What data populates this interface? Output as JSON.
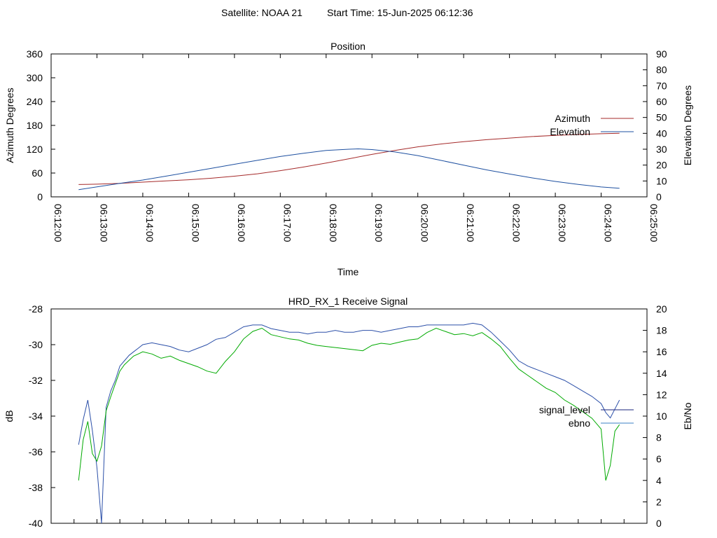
{
  "header": {
    "satellite_label": "Satellite: NOAA 21",
    "start_time_label": "Start Time: 15-Jun-2025 06:12:36"
  },
  "chart_data": [
    {
      "type": "line",
      "title": "Position",
      "xlabel": "Time",
      "ylabel": "Azimuth Degrees",
      "y2label": "Elevation Degrees",
      "x_ticks": [
        "06:12:00",
        "06:13:00",
        "06:14:00",
        "06:15:00",
        "06:16:00",
        "06:17:00",
        "06:18:00",
        "06:19:00",
        "06:20:00",
        "06:21:00",
        "06:22:00",
        "06:23:00",
        "06:24:00",
        "06:25:00"
      ],
      "x_minutes": [
        0,
        1,
        2,
        3,
        4,
        5,
        6,
        7,
        8,
        9,
        10,
        11,
        12,
        13
      ],
      "ylim": [
        0,
        360
      ],
      "y_ticks": [
        0,
        60,
        120,
        180,
        240,
        300,
        360
      ],
      "y2lim": [
        0,
        90
      ],
      "y2_ticks": [
        0,
        10,
        20,
        30,
        40,
        50,
        60,
        70,
        80,
        90
      ],
      "legend_position": "right",
      "series": [
        {
          "name": "Azimuth",
          "axis": "left",
          "color": "#a52a2a",
          "x": [
            0.6,
            1.0,
            1.5,
            2.0,
            2.5,
            3.0,
            3.5,
            4.0,
            4.5,
            5.0,
            5.5,
            6.0,
            6.5,
            7.0,
            7.5,
            8.0,
            8.5,
            9.0,
            9.5,
            10.0,
            10.5,
            11.0,
            11.5,
            12.0,
            12.4
          ],
          "values": [
            31,
            32,
            34,
            37,
            40,
            43,
            47,
            52,
            58,
            66,
            75,
            85,
            96,
            107,
            117,
            126,
            133,
            139,
            144,
            148,
            152,
            155,
            157,
            159,
            160
          ]
        },
        {
          "name": "Elevation",
          "axis": "right",
          "color": "#1e50a0",
          "x": [
            0.6,
            1.0,
            1.5,
            2.0,
            2.5,
            3.0,
            3.5,
            4.0,
            4.5,
            5.0,
            5.5,
            6.0,
            6.5,
            6.7,
            7.0,
            7.5,
            8.0,
            8.5,
            9.0,
            9.5,
            10.0,
            10.5,
            11.0,
            11.5,
            12.0,
            12.4
          ],
          "values": [
            4.5,
            6.3,
            8.5,
            10.6,
            13.0,
            15.5,
            18.0,
            20.5,
            23.0,
            25.4,
            27.4,
            29.2,
            30.0,
            30.2,
            29.8,
            28.3,
            26.0,
            23.0,
            20.0,
            17.0,
            14.4,
            11.9,
            9.7,
            7.8,
            6.2,
            5.4
          ]
        }
      ]
    },
    {
      "type": "line",
      "title": "HRD_RX_1 Receive Signal",
      "ylabel": "dB",
      "y2label": "Eb/No",
      "ylim": [
        -40,
        -28
      ],
      "y_ticks": [
        -40,
        -38,
        -36,
        -34,
        -32,
        -30,
        -28
      ],
      "y2lim": [
        0,
        20
      ],
      "y2_ticks": [
        0,
        2,
        4,
        6,
        8,
        10,
        12,
        14,
        16,
        18,
        20
      ],
      "xlim_minutes": [
        0,
        13
      ],
      "legend_position": "right",
      "series": [
        {
          "name": "signal_level",
          "axis": "left",
          "color": "#2b4fa8",
          "x": [
            0.6,
            0.7,
            0.8,
            0.9,
            1.0,
            1.1,
            1.2,
            1.3,
            1.4,
            1.5,
            1.6,
            1.7,
            1.8,
            1.9,
            2.0,
            2.2,
            2.4,
            2.6,
            2.8,
            3.0,
            3.2,
            3.4,
            3.6,
            3.8,
            4.0,
            4.2,
            4.4,
            4.6,
            4.8,
            5.0,
            5.2,
            5.4,
            5.6,
            5.8,
            6.0,
            6.2,
            6.4,
            6.6,
            6.8,
            7.0,
            7.2,
            7.4,
            7.6,
            7.8,
            8.0,
            8.2,
            8.4,
            8.6,
            8.8,
            9.0,
            9.2,
            9.4,
            9.6,
            9.8,
            10.0,
            10.2,
            10.4,
            10.6,
            10.8,
            11.0,
            11.2,
            11.4,
            11.6,
            11.8,
            12.0,
            12.1,
            12.2,
            12.3,
            12.4
          ],
          "values": [
            -35.6,
            -34.2,
            -33.1,
            -34.8,
            -36.9,
            -40.0,
            -33.5,
            -32.6,
            -32.0,
            -31.2,
            -30.9,
            -30.6,
            -30.4,
            -30.2,
            -30.0,
            -29.9,
            -30.0,
            -30.1,
            -30.3,
            -30.4,
            -30.2,
            -30.0,
            -29.7,
            -29.6,
            -29.3,
            -29.0,
            -28.9,
            -28.9,
            -29.1,
            -29.2,
            -29.3,
            -29.3,
            -29.4,
            -29.3,
            -29.3,
            -29.2,
            -29.3,
            -29.3,
            -29.2,
            -29.2,
            -29.3,
            -29.2,
            -29.1,
            -29.0,
            -29.0,
            -28.9,
            -28.9,
            -28.9,
            -28.9,
            -28.9,
            -28.8,
            -28.9,
            -29.3,
            -29.8,
            -30.3,
            -30.9,
            -31.2,
            -31.4,
            -31.6,
            -31.8,
            -32.0,
            -32.3,
            -32.6,
            -32.9,
            -33.3,
            -33.8,
            -34.1,
            -33.6,
            -33.1
          ]
        },
        {
          "name": "ebno",
          "axis": "right",
          "color": "#00aa00",
          "x": [
            0.6,
            0.7,
            0.8,
            0.9,
            1.0,
            1.1,
            1.2,
            1.3,
            1.4,
            1.5,
            1.6,
            1.7,
            1.8,
            1.9,
            2.0,
            2.2,
            2.4,
            2.6,
            2.8,
            3.0,
            3.2,
            3.4,
            3.6,
            3.8,
            4.0,
            4.2,
            4.4,
            4.6,
            4.8,
            5.0,
            5.2,
            5.4,
            5.6,
            5.8,
            6.0,
            6.2,
            6.4,
            6.6,
            6.8,
            7.0,
            7.2,
            7.4,
            7.6,
            7.8,
            8.0,
            8.2,
            8.4,
            8.6,
            8.8,
            9.0,
            9.2,
            9.4,
            9.6,
            9.8,
            10.0,
            10.2,
            10.4,
            10.6,
            10.8,
            11.0,
            11.2,
            11.4,
            11.6,
            11.8,
            12.0,
            12.1,
            12.2,
            12.3,
            12.4
          ],
          "values": [
            4.0,
            7.8,
            9.5,
            6.5,
            5.8,
            7.2,
            10.5,
            11.8,
            13.0,
            14.2,
            14.8,
            15.2,
            15.6,
            15.8,
            16.0,
            15.8,
            15.4,
            15.6,
            15.2,
            14.9,
            14.6,
            14.2,
            14.0,
            15.1,
            16.0,
            17.2,
            17.9,
            18.2,
            17.6,
            17.4,
            17.2,
            17.1,
            16.8,
            16.6,
            16.5,
            16.4,
            16.3,
            16.2,
            16.1,
            16.6,
            16.8,
            16.7,
            16.9,
            17.1,
            17.2,
            17.8,
            18.2,
            17.9,
            17.6,
            17.7,
            17.5,
            17.8,
            17.2,
            16.5,
            15.4,
            14.4,
            13.8,
            13.2,
            12.6,
            12.2,
            11.5,
            11.0,
            10.4,
            9.8,
            8.8,
            4.0,
            5.4,
            8.6,
            9.2
          ]
        }
      ]
    }
  ]
}
